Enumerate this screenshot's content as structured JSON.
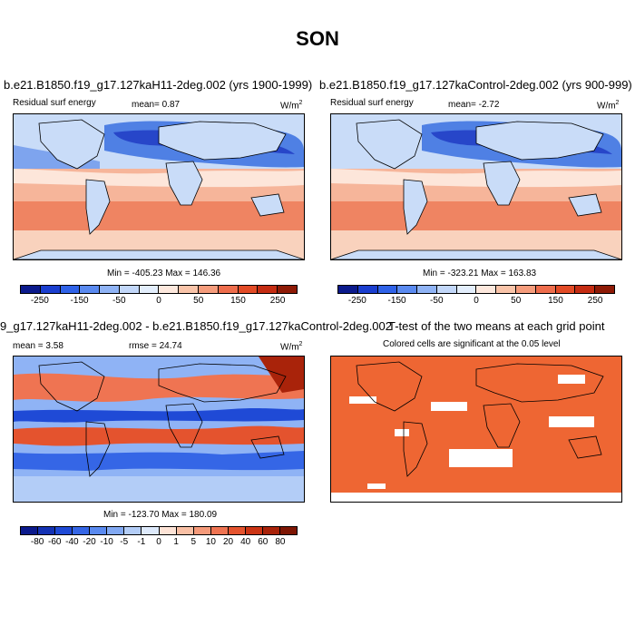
{
  "figure": {
    "title": "SON"
  },
  "panels": {
    "p1": {
      "title": "b.e21.B1850.f19_g17.127kaH11-2deg.002 (yrs 1900-1999)",
      "left": "Residual surf energy",
      "center": "mean=  0.87",
      "units": "W/m",
      "units_sup": "2",
      "minmax": "Min = -405.23 Max = 146.36"
    },
    "p2": {
      "title": "b.e21.B1850.f19_g17.127kaControl-2deg.002 (yrs 900-999)",
      "left": "Residual surf energy",
      "center": "mean=  -2.72",
      "units": "W/m",
      "units_sup": "2",
      "minmax": "Min = -323.21 Max = 163.83"
    },
    "p3": {
      "title": "9_g17.127kaH11-2deg.002 - b.e21.B1850.f19_g17.127kaControl-2deg.002",
      "left": "mean =  3.58",
      "center": "rmse =  24.74",
      "units": "W/m",
      "units_sup": "2",
      "minmax": "Min = -123.70 Max = 180.09"
    },
    "p4": {
      "title": "T-test of the two means at each grid point",
      "subtitle": "Colored cells are significant at the 0.05 level",
      "fill_color": "#ee6633"
    }
  },
  "colorbars": {
    "abs": {
      "labels": [
        "-250",
        "-150",
        "-50",
        "0",
        "50",
        "150",
        "250"
      ],
      "colors": [
        "#0b1a8c",
        "#1a3ecf",
        "#2f62e8",
        "#5a8af0",
        "#8fb3f5",
        "#c2d7f9",
        "#e3eefc",
        "#fde8dd",
        "#f9c4a9",
        "#f59c7c",
        "#ee6d4c",
        "#e24b26",
        "#c42c12",
        "#8e1a06"
      ]
    },
    "diff": {
      "labels": [
        "-80",
        "-60",
        "-40",
        "-20",
        "-10",
        "-5",
        "-1",
        "0",
        "1",
        "5",
        "10",
        "20",
        "40",
        "60",
        "80"
      ],
      "colors": [
        "#0b1a8c",
        "#1432b4",
        "#1f4ad6",
        "#3566e6",
        "#5a8af0",
        "#82a9f3",
        "#b3cdf7",
        "#dde9fb",
        "#fde3d6",
        "#f9c0a5",
        "#f59a7a",
        "#ef7452",
        "#e4532e",
        "#cb3414",
        "#a9230a",
        "#7e1604"
      ]
    }
  }
}
